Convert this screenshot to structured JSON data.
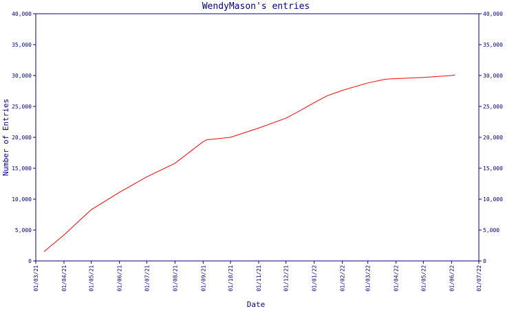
{
  "chart_data": {
    "type": "line",
    "title": "WendyMason's entries",
    "xlabel": "Date",
    "ylabel": "Number of Entries",
    "ylim": [
      0,
      40000
    ],
    "y_ticks": [
      0,
      5000,
      10000,
      15000,
      20000,
      25000,
      30000,
      35000,
      40000
    ],
    "y_tick_labels": [
      "0",
      "5,000",
      "10,000",
      "15,000",
      "20,000",
      "25,000",
      "30,000",
      "35,000",
      "40,000"
    ],
    "right_axis": true,
    "x_tick_labels": [
      "01/03/21",
      "01/04/21",
      "01/05/21",
      "01/06/21",
      "01/07/21",
      "01/08/21",
      "01/09/21",
      "01/10/21",
      "01/11/21",
      "01/12/21",
      "01/01/22",
      "01/02/22",
      "01/03/22",
      "01/04/22",
      "01/05/22",
      "01/06/22",
      "01/07/22"
    ],
    "grid": false,
    "line_color": "#ff0000",
    "axis_color": "#00007f",
    "series": [
      {
        "x": [
          "2021-03-10",
          "2021-04-01",
          "2021-04-20",
          "2021-05-01",
          "2021-06-01",
          "2021-07-01",
          "2021-08-01",
          "2021-09-01",
          "2021-09-05",
          "2021-10-01",
          "2021-11-01",
          "2021-12-01",
          "2021-12-15",
          "2022-01-01",
          "2022-01-15",
          "2022-02-01",
          "2022-03-01",
          "2022-03-20",
          "2022-04-01",
          "2022-05-01",
          "2022-06-01",
          "2022-06-05"
        ],
        "y": [
          1500,
          4200,
          6800,
          8300,
          11100,
          13600,
          15800,
          19300,
          19600,
          20000,
          21500,
          23100,
          24200,
          25600,
          26700,
          27600,
          28800,
          29400,
          29500,
          29700,
          30000,
          30100
        ]
      }
    ]
  }
}
